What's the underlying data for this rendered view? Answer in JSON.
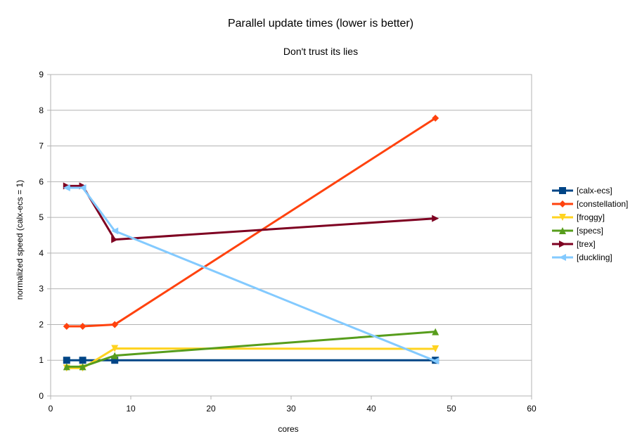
{
  "chart_data": {
    "type": "line",
    "title": "Parallel update times (lower is better)",
    "subtitle": "Don't trust its lies",
    "xlabel": "cores",
    "ylabel": "normalized speed (calx-ecs = 1)",
    "xlim": [
      0,
      60
    ],
    "ylim": [
      0,
      9
    ],
    "xticks": [
      0,
      10,
      20,
      30,
      40,
      50,
      60
    ],
    "yticks": [
      0,
      1,
      2,
      3,
      4,
      5,
      6,
      7,
      8,
      9
    ],
    "grid": true,
    "legend_position": "right",
    "series": [
      {
        "name": "[calx-ecs]",
        "color": "#004586",
        "marker": "square",
        "x": [
          2,
          4,
          8,
          48
        ],
        "values": [
          1,
          1,
          1,
          1
        ]
      },
      {
        "name": "[constellation]",
        "color": "#ff420e",
        "marker": "diamond",
        "x": [
          2,
          4,
          8,
          48
        ],
        "values": [
          1.95,
          1.95,
          2.0,
          7.78
        ]
      },
      {
        "name": "[froggy]",
        "color": "#ffd320",
        "marker": "triangle-down",
        "x": [
          2,
          4,
          8,
          48
        ],
        "values": [
          0.78,
          0.78,
          1.33,
          1.32
        ]
      },
      {
        "name": "[specs]",
        "color": "#579d1c",
        "marker": "triangle-up",
        "x": [
          2,
          4,
          8,
          48
        ],
        "values": [
          0.82,
          0.82,
          1.13,
          1.8
        ]
      },
      {
        "name": "[trex]",
        "color": "#7e0021",
        "marker": "triangle-right",
        "x": [
          2,
          4,
          8,
          48
        ],
        "values": [
          5.88,
          5.88,
          4.38,
          4.97
        ]
      },
      {
        "name": "[duckling]",
        "color": "#83caff",
        "marker": "triangle-left",
        "x": [
          2,
          4,
          8,
          48
        ],
        "values": [
          5.83,
          5.83,
          4.62,
          0.98
        ]
      }
    ]
  }
}
